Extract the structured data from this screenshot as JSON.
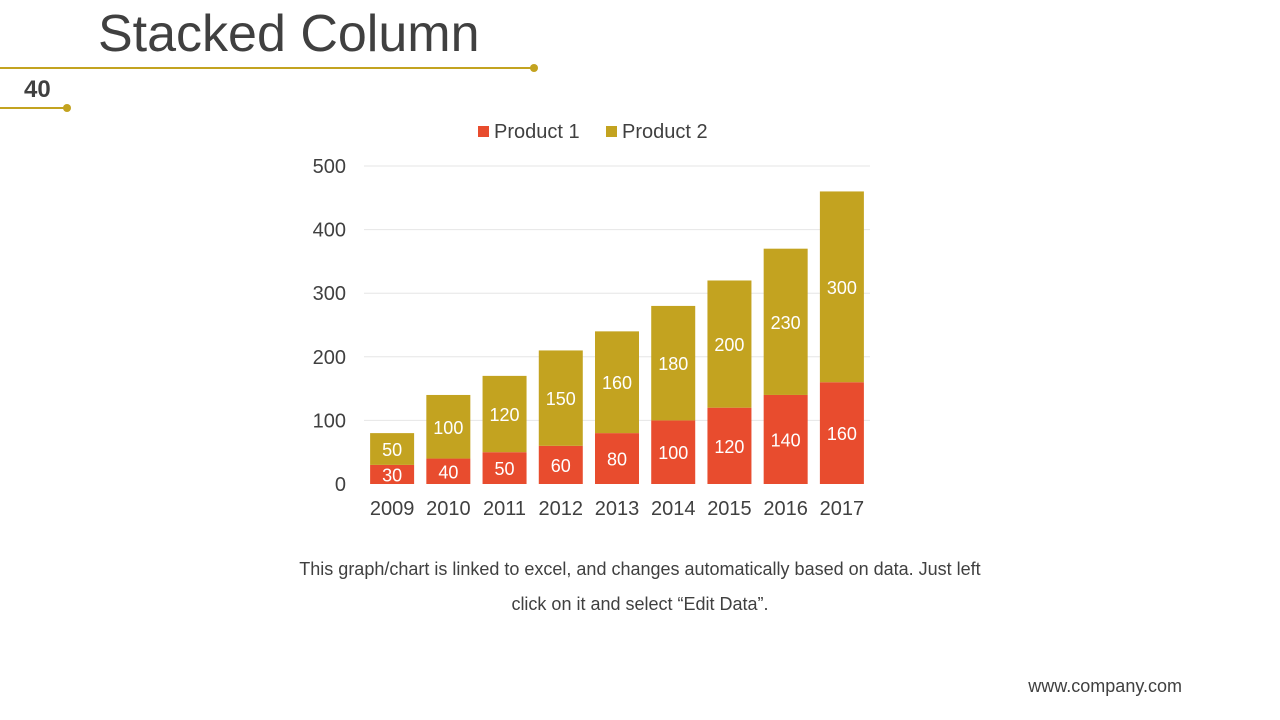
{
  "slide": {
    "title": "Stacked Column",
    "page_number": "40",
    "caption_line1": "This graph/chart is linked to excel, and changes automatically based on data. Just left",
    "caption_line2": "click on it and select “Edit Data”.",
    "footer_url": "www.company.com"
  },
  "colors": {
    "accent": "#c3a320",
    "product1": "#e84c2e",
    "product2": "#c3a320"
  },
  "chart_data": {
    "type": "bar",
    "stacked": true,
    "title": "",
    "xlabel": "",
    "ylabel": "",
    "ylim": [
      0,
      500
    ],
    "yticks": [
      0,
      100,
      200,
      300,
      400,
      500
    ],
    "grid": true,
    "legend_position": "top-center",
    "categories": [
      "2009",
      "2010",
      "2011",
      "2012",
      "2013",
      "2014",
      "2015",
      "2016",
      "2017"
    ],
    "series": [
      {
        "name": "Product 1",
        "color": "#e84c2e",
        "values": [
          30,
          40,
          50,
          60,
          80,
          100,
          120,
          140,
          160
        ]
      },
      {
        "name": "Product 2",
        "color": "#c3a320",
        "values": [
          50,
          100,
          120,
          150,
          160,
          180,
          200,
          230,
          300
        ]
      }
    ]
  }
}
